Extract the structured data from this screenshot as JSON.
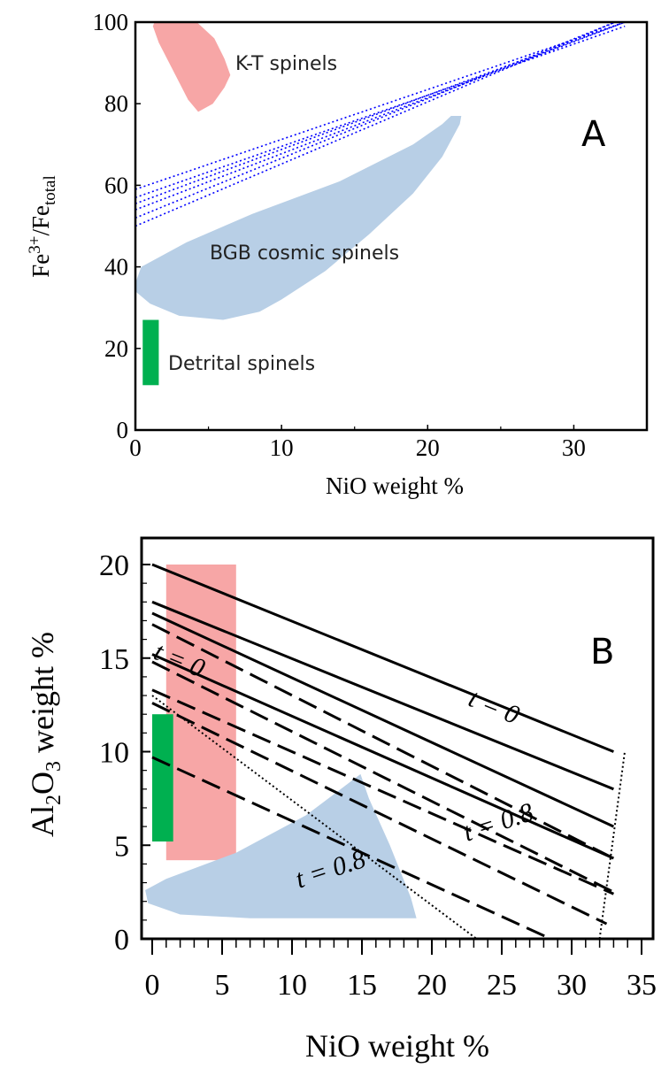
{
  "chart_data": [
    {
      "type": "scatter",
      "panel_label": "A",
      "xlabel": "NiO weight %",
      "ylabel": "Fe3+/Fetotal",
      "ylabel_parts": {
        "base1": "Fe",
        "sup": "3+",
        "base2": "/Fe",
        "sub": "total"
      },
      "xlim": [
        0,
        35
      ],
      "ylim": [
        0,
        100
      ],
      "xticks": [
        "0",
        "10",
        "20",
        "30"
      ],
      "yticks": [
        "0",
        "20",
        "40",
        "60",
        "80",
        "100"
      ],
      "regions": [
        {
          "name": "K-T spinels",
          "color": "#f7a6a6",
          "polygon": [
            [
              1.3,
              100
            ],
            [
              4.2,
              100
            ],
            [
              5.4,
              96
            ],
            [
              6.1,
              91
            ],
            [
              6.5,
              87
            ],
            [
              6.1,
              84
            ],
            [
              5.3,
              80
            ],
            [
              4.3,
              78
            ],
            [
              3.6,
              81
            ],
            [
              2.6,
              88
            ],
            [
              1.6,
              95
            ],
            [
              1.2,
              99
            ]
          ]
        },
        {
          "name": "BGB cosmic spinels",
          "color": "#b8cfe6",
          "polygon": [
            [
              0,
              36
            ],
            [
              0.4,
              40
            ],
            [
              3.5,
              46
            ],
            [
              8,
              53
            ],
            [
              14,
              61
            ],
            [
              19,
              70
            ],
            [
              21,
              75
            ],
            [
              21.6,
              77
            ],
            [
              22.3,
              77
            ],
            [
              22.2,
              75
            ],
            [
              21,
              67
            ],
            [
              19,
              58
            ],
            [
              16,
              48
            ],
            [
              13,
              39
            ],
            [
              10,
              32
            ],
            [
              8.5,
              29
            ],
            [
              6,
              27
            ],
            [
              3,
              28
            ],
            [
              1,
              31
            ],
            [
              0,
              34
            ]
          ]
        },
        {
          "name": "Detrital spinels",
          "color": "#00b050",
          "rect": {
            "x0": 0.5,
            "x1": 1.6,
            "y0": 11,
            "y1": 27
          }
        }
      ],
      "trend_band": {
        "color": "#0000ff",
        "x_start": [
          0,
          33.5
        ],
        "lines": [
          {
            "y_start": 50,
            "y_end": 101
          },
          {
            "y_start": 52,
            "y_end": 101
          },
          {
            "y_start": 54,
            "y_end": 100
          },
          {
            "y_start": 55.5,
            "y_end": 100
          },
          {
            "y_start": 57,
            "y_end": 99
          },
          {
            "y_start": 59,
            "y_end": 100
          }
        ]
      }
    },
    {
      "type": "line",
      "panel_label": "B",
      "xlabel": "NiO weight %",
      "ylabel": "Al2O3 weight %",
      "ylabel_parts": {
        "base1": "Al",
        "sub1": "2",
        "base2": "O",
        "sub2": "3",
        "rest": " weight %"
      },
      "xlim": [
        0,
        35
      ],
      "ylim": [
        0,
        20
      ],
      "xticks": [
        "0",
        "5",
        "10",
        "15",
        "20",
        "25",
        "30",
        "35"
      ],
      "yticks": [
        "0",
        "5",
        "10",
        "15",
        "20"
      ],
      "regions": [
        {
          "name": "K-T spinels",
          "color": "#f7a6a6",
          "rect": {
            "x0": 1,
            "x1": 6,
            "y0": 4.2,
            "y1": 20
          }
        },
        {
          "name": "Detrital spinels",
          "color": "#00b050",
          "rect": {
            "x0": 0,
            "x1": 1.5,
            "y0": 5.2,
            "y1": 12
          }
        },
        {
          "name": "BGB cosmic spinels",
          "color": "#b8cfe6",
          "polygon": [
            [
              -0.5,
              2.6
            ],
            [
              1,
              3.2
            ],
            [
              6,
              4.6
            ],
            [
              11,
              6.6
            ],
            [
              14.9,
              8.8
            ],
            [
              15.5,
              7.5
            ],
            [
              17,
              5
            ],
            [
              18.5,
              2.2
            ],
            [
              18.9,
              1.1
            ],
            [
              14,
              1.1
            ],
            [
              7,
              1.1
            ],
            [
              2,
              1.3
            ],
            [
              -0.3,
              1.9
            ]
          ]
        }
      ],
      "solid_lines": [
        {
          "x": [
            0,
            33
          ],
          "y": [
            20,
            10
          ]
        },
        {
          "x": [
            0,
            33
          ],
          "y": [
            18,
            8
          ]
        },
        {
          "x": [
            0,
            33
          ],
          "y": [
            17.4,
            6
          ]
        },
        {
          "x": [
            0,
            33
          ],
          "y": [
            15.2,
            4.3
          ]
        }
      ],
      "dashed_lines": [
        {
          "x": [
            0,
            33
          ],
          "y": [
            16.8,
            4.3
          ]
        },
        {
          "x": [
            0,
            33
          ],
          "y": [
            14.8,
            2.5
          ]
        },
        {
          "x": [
            0,
            33
          ],
          "y": [
            13.3,
            2.4
          ]
        },
        {
          "x": [
            0,
            32.5
          ],
          "y": [
            12.6,
            0.8
          ]
        },
        {
          "x": [
            0,
            28.5
          ],
          "y": [
            9.7,
            0
          ]
        }
      ],
      "dotted_lines": [
        {
          "x": [
            0,
            23.2
          ],
          "y": [
            13,
            0
          ]
        },
        {
          "x": [
            32,
            33.8
          ],
          "y": [
            0,
            10
          ]
        }
      ],
      "annotations": [
        {
          "text": "t = 0",
          "x": 0,
          "y": 15,
          "rotate": 22
        },
        {
          "text": "t = 0",
          "x": 22.5,
          "y": 12.5,
          "rotate": 22
        },
        {
          "text": "t = 0.8",
          "x": 10.5,
          "y": 2.7,
          "rotate": -18
        },
        {
          "text": "t = 0.8",
          "x": 22.5,
          "y": 5.2,
          "rotate": -18
        }
      ]
    }
  ]
}
